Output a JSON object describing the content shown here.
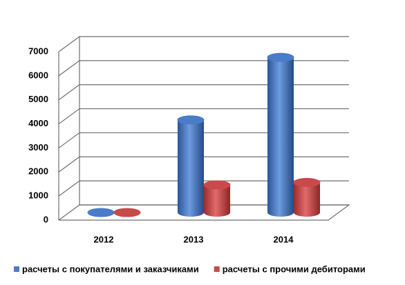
{
  "chart_data": {
    "type": "bar3d",
    "categories": [
      "2012",
      "2013",
      "2014"
    ],
    "series": [
      {
        "name": "расчеты с покупателями и заказчиками",
        "color": "#4a7cc8",
        "values": [
          0,
          3850,
          6450
        ]
      },
      {
        "name": "расчеты с прочими дебиторами",
        "color": "#c84a4a",
        "values": [
          0,
          1150,
          1250
        ]
      }
    ],
    "ylim": [
      0,
      7000
    ],
    "yticks": [
      0,
      1000,
      2000,
      3000,
      4000,
      5000,
      6000,
      7000
    ],
    "grid": true,
    "legend": "bottom"
  }
}
